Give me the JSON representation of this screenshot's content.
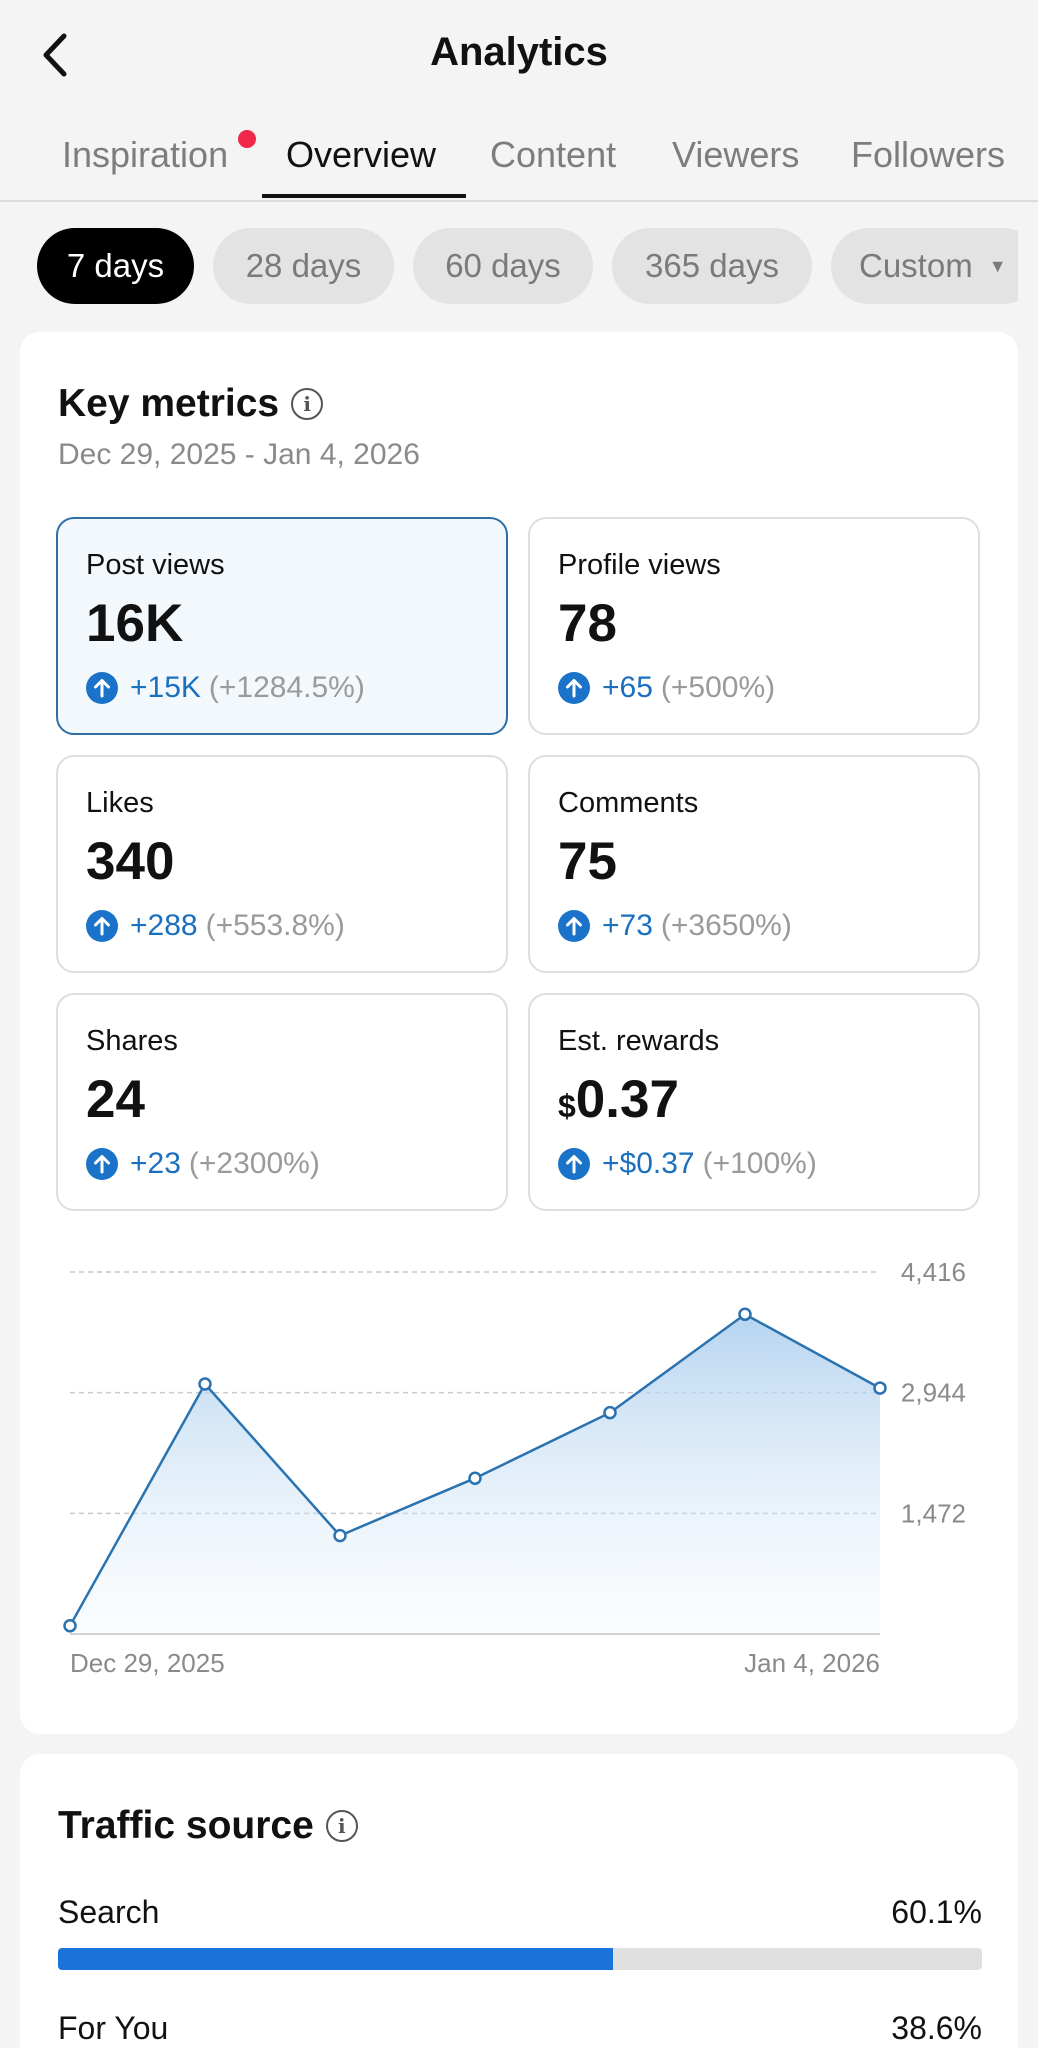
{
  "header": {
    "title": "Analytics"
  },
  "tabs": [
    {
      "label": "Inspiration",
      "active": false,
      "dot": true
    },
    {
      "label": "Overview",
      "active": true
    },
    {
      "label": "Content",
      "active": false
    },
    {
      "label": "Viewers",
      "active": false
    },
    {
      "label": "Followers",
      "active": false
    }
  ],
  "ranges": [
    {
      "label": "7 days",
      "active": true
    },
    {
      "label": "28 days"
    },
    {
      "label": "60 days"
    },
    {
      "label": "365 days"
    },
    {
      "label": "Custom",
      "dropdown": true
    }
  ],
  "key_metrics": {
    "title": "Key metrics",
    "date_range": "Dec 29, 2025 - Jan 4, 2026",
    "metrics": [
      {
        "label": "Post views",
        "value": "16K",
        "delta": "+15K",
        "pct": "(+1284.5%)",
        "selected": true
      },
      {
        "label": "Profile views",
        "value": "78",
        "delta": "+65",
        "pct": "(+500%)"
      },
      {
        "label": "Likes",
        "value": "340",
        "delta": "+288",
        "pct": "(+553.8%)"
      },
      {
        "label": "Comments",
        "value": "75",
        "delta": "+73",
        "pct": "(+3650%)"
      },
      {
        "label": "Shares",
        "value": "24",
        "delta": "+23",
        "pct": "(+2300%)"
      },
      {
        "label": "Est. rewards",
        "currency": "$",
        "value": "0.37",
        "delta": "+$0.37",
        "pct": "(+100%)"
      }
    ]
  },
  "chart_data": {
    "type": "area",
    "x": [
      "Dec 29, 2025",
      "Dec 30, 2025",
      "Dec 31, 2025",
      "Jan 1, 2026",
      "Jan 2, 2026",
      "Jan 3, 2026",
      "Jan 4, 2026"
    ],
    "x_tick_labels": [
      "Dec 29, 2025",
      "Jan 4, 2026"
    ],
    "y_tick_labels": [
      "4,416",
      "2,944",
      "1,472"
    ],
    "series": [
      {
        "values": [
          100,
          3050,
          1200,
          1900,
          2700,
          3900,
          3000
        ]
      }
    ],
    "ylim": [
      0,
      4416
    ],
    "grid": true,
    "color": "#2a73b0"
  },
  "traffic": {
    "title": "Traffic source",
    "sources": [
      {
        "name": "Search",
        "pct": "60.1%",
        "value": 60.1
      },
      {
        "name": "For You",
        "pct": "38.6%",
        "value": 38.6
      }
    ]
  }
}
